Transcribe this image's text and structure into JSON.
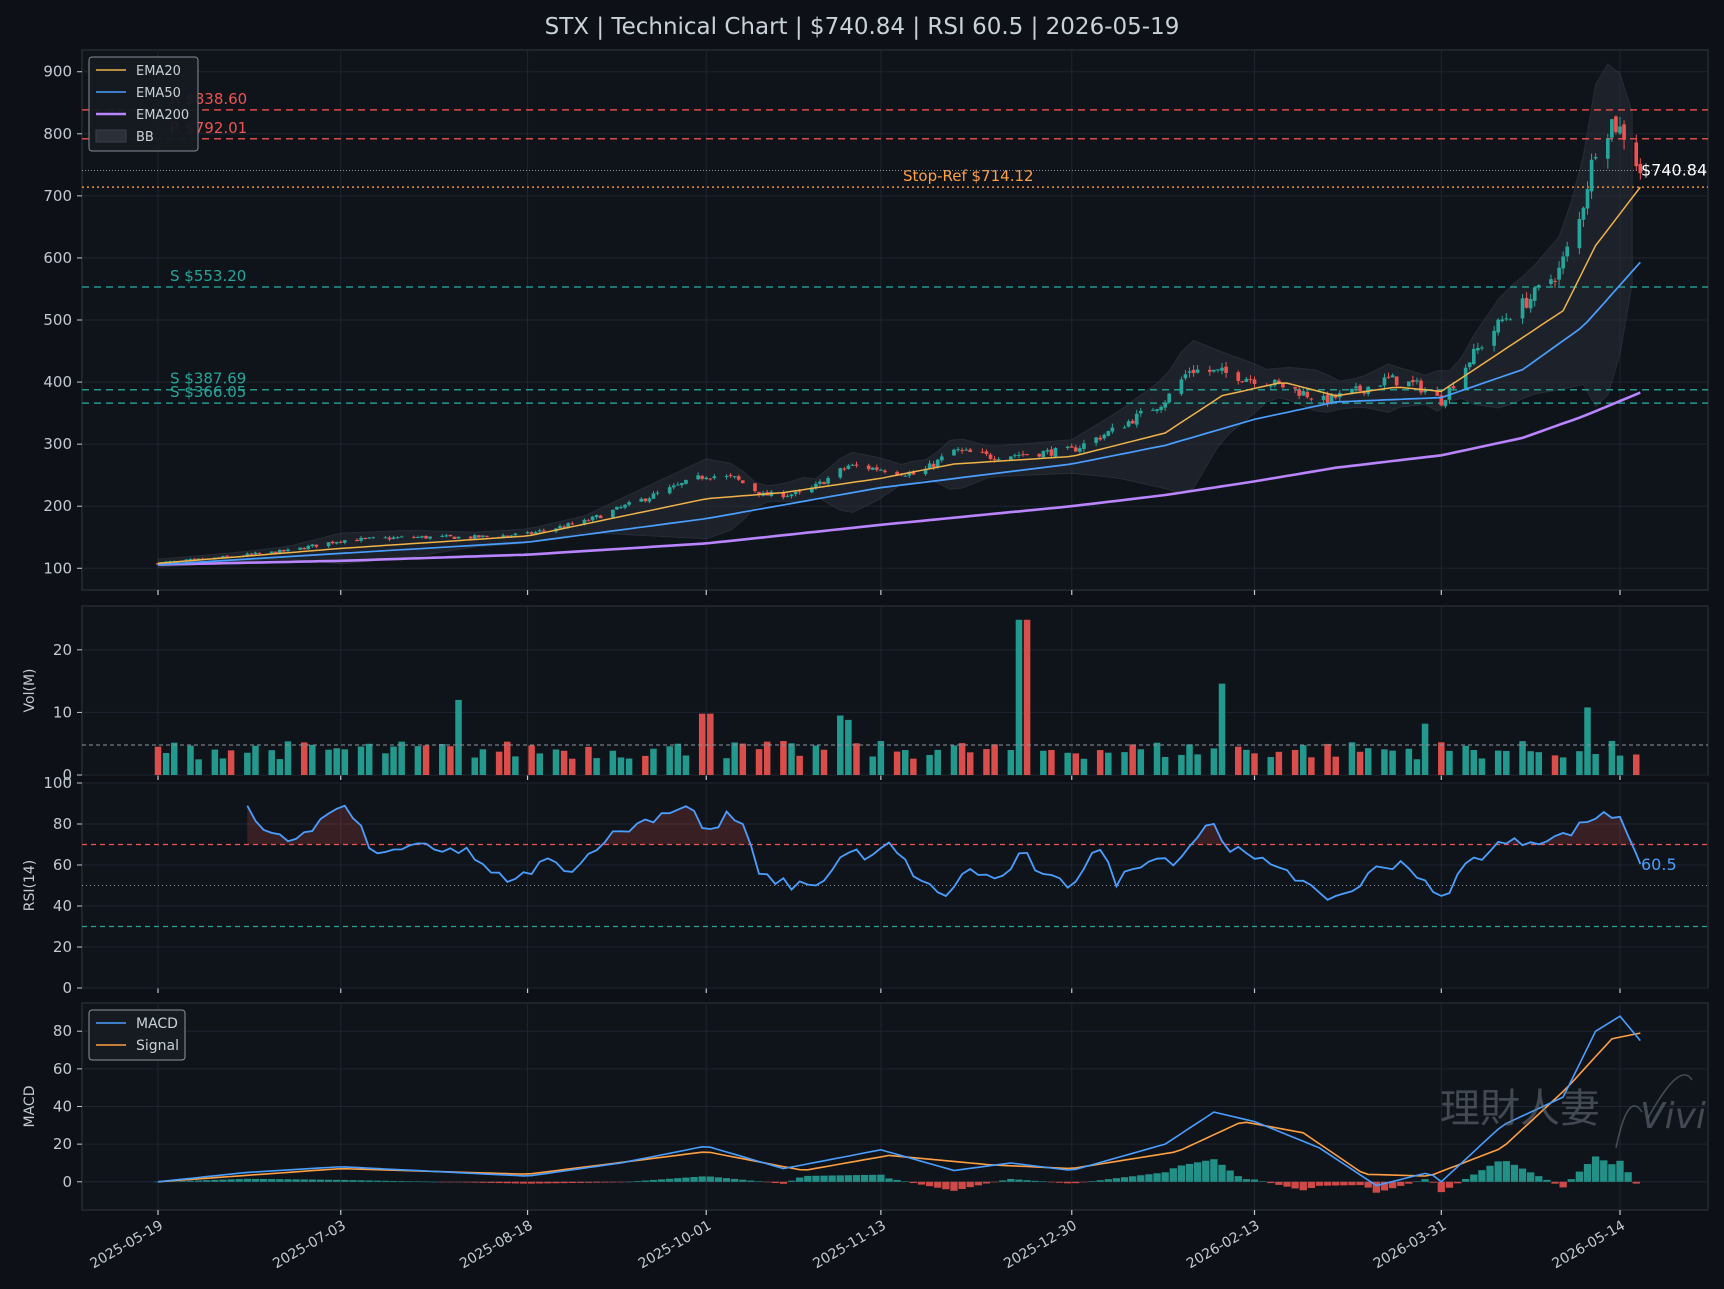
{
  "header": {
    "title": "STX  |  Technical Chart  |  $740.84  |  RSI 60.5  |  2026-05-19"
  },
  "colors": {
    "background": "#0d1117",
    "panel": "#0f141b",
    "grid": "#1e2530",
    "axis_text": "#c3c9d2",
    "up": "#26a69a",
    "down": "#ef5350",
    "ema20": "#f0b34a",
    "ema50": "#4a9eff",
    "ema200": "#b884ff",
    "bb_fill": "#2a2f38",
    "resistance": "#ef5350",
    "support": "#26a69a",
    "stop": "#ff9f43",
    "last_price_line": "#8b949e",
    "macd": "#4a9eff",
    "signal": "#ff9f43",
    "rsi": "#4a9eff"
  },
  "watermark": {
    "text_cn": "理財人妻",
    "text_sig": "Vivi"
  },
  "chart_data": [
    {
      "panel": "price",
      "type": "candlestick",
      "ylim": [
        65,
        935
      ],
      "yticks": [
        100,
        200,
        300,
        400,
        500,
        600,
        700,
        800,
        900
      ],
      "x_tick_labels": [
        "2025-05-19",
        "2025-07-03",
        "2025-08-18",
        "2025-10-01",
        "2025-11-13",
        "2025-12-30",
        "2026-02-13",
        "2026-03-31",
        "2026-05-14"
      ],
      "x_range": [
        "2025-05-19",
        "2026-05-19"
      ],
      "legend": {
        "placement": "top-left",
        "entries": [
          "EMA20",
          "EMA50",
          "EMA200",
          "BB"
        ]
      },
      "series_close_points": [
        [
          "2025-05-19",
          108
        ],
        [
          "2025-06-05",
          118
        ],
        [
          "2025-06-20",
          128
        ],
        [
          "2025-07-03",
          145
        ],
        [
          "2025-07-20",
          150
        ],
        [
          "2025-08-05",
          150
        ],
        [
          "2025-08-18",
          155
        ],
        [
          "2025-09-01",
          175
        ],
        [
          "2025-09-15",
          210
        ],
        [
          "2025-09-25",
          235
        ],
        [
          "2025-10-01",
          250
        ],
        [
          "2025-10-08",
          245
        ],
        [
          "2025-10-15",
          218
        ],
        [
          "2025-10-25",
          220
        ],
        [
          "2025-11-05",
          265
        ],
        [
          "2025-11-13",
          260
        ],
        [
          "2025-11-22",
          250
        ],
        [
          "2025-12-01",
          290
        ],
        [
          "2025-12-10",
          280
        ],
        [
          "2025-12-20",
          285
        ],
        [
          "2025-12-30",
          290
        ],
        [
          "2026-01-10",
          325
        ],
        [
          "2026-01-22",
          370
        ],
        [
          "2026-01-28",
          420
        ],
        [
          "2026-02-05",
          415
        ],
        [
          "2026-02-13",
          405
        ],
        [
          "2026-02-22",
          390
        ],
        [
          "2026-03-02",
          370
        ],
        [
          "2026-03-10",
          385
        ],
        [
          "2026-03-18",
          405
        ],
        [
          "2026-03-25",
          395
        ],
        [
          "2026-03-31",
          370
        ],
        [
          "2026-04-08",
          445
        ],
        [
          "2026-04-15",
          500
        ],
        [
          "2026-04-22",
          535
        ],
        [
          "2026-04-29",
          580
        ],
        [
          "2026-05-04",
          660
        ],
        [
          "2026-05-08",
          780
        ],
        [
          "2026-05-12",
          820
        ],
        [
          "2026-05-15",
          800
        ],
        [
          "2026-05-19",
          740.84
        ]
      ],
      "ema20": [
        [
          "2025-05-19",
          108
        ],
        [
          "2025-07-03",
          132
        ],
        [
          "2025-08-18",
          152
        ],
        [
          "2025-10-01",
          212
        ],
        [
          "2025-10-20",
          222
        ],
        [
          "2025-11-13",
          245
        ],
        [
          "2025-12-01",
          268
        ],
        [
          "2025-12-30",
          280
        ],
        [
          "2026-01-22",
          318
        ],
        [
          "2026-02-05",
          378
        ],
        [
          "2026-02-20",
          400
        ],
        [
          "2026-03-05",
          378
        ],
        [
          "2026-03-20",
          392
        ],
        [
          "2026-03-31",
          385
        ],
        [
          "2026-04-15",
          450
        ],
        [
          "2026-04-30",
          515
        ],
        [
          "2026-05-08",
          620
        ],
        [
          "2026-05-19",
          714
        ]
      ],
      "ema50": [
        [
          "2025-05-19",
          106
        ],
        [
          "2025-07-03",
          124
        ],
        [
          "2025-08-18",
          142
        ],
        [
          "2025-10-01",
          180
        ],
        [
          "2025-11-13",
          230
        ],
        [
          "2025-12-30",
          268
        ],
        [
          "2026-01-22",
          298
        ],
        [
          "2026-02-13",
          340
        ],
        [
          "2026-03-05",
          368
        ],
        [
          "2026-03-31",
          375
        ],
        [
          "2026-04-20",
          420
        ],
        [
          "2026-05-05",
          490
        ],
        [
          "2026-05-19",
          593
        ]
      ],
      "ema200": [
        [
          "2025-05-19",
          106
        ],
        [
          "2025-07-03",
          112
        ],
        [
          "2025-08-18",
          122
        ],
        [
          "2025-10-01",
          140
        ],
        [
          "2025-11-13",
          170
        ],
        [
          "2025-12-30",
          200
        ],
        [
          "2026-01-22",
          218
        ],
        [
          "2026-02-13",
          240
        ],
        [
          "2026-03-05",
          262
        ],
        [
          "2026-03-31",
          282
        ],
        [
          "2026-04-20",
          310
        ],
        [
          "2026-05-05",
          345
        ],
        [
          "2026-05-19",
          383
        ]
      ],
      "levels": [
        {
          "label": "R $838.60",
          "value": 838.6,
          "kind": "resistance"
        },
        {
          "label": "R $792.01",
          "value": 792.01,
          "kind": "resistance"
        },
        {
          "label": "Stop-Ref $714.12",
          "value": 714.12,
          "kind": "stop"
        },
        {
          "label": "S $553.20",
          "value": 553.2,
          "kind": "support"
        },
        {
          "label": "S $387.69",
          "value": 387.69,
          "kind": "support"
        },
        {
          "label": "S $366.05",
          "value": 366.05,
          "kind": "support"
        }
      ],
      "last_price": {
        "label": "$740.84",
        "value": 740.84
      }
    },
    {
      "panel": "volume",
      "type": "bar",
      "ylabel": "Vol(M)",
      "ylim": [
        0,
        27
      ],
      "yticks": [
        0,
        10,
        20
      ],
      "average": 4.8,
      "spikes": [
        [
          "2025-05-25",
          8
        ],
        [
          "2025-08-01",
          12
        ],
        [
          "2025-10-01",
          9.8
        ],
        [
          "2025-10-04",
          9.5
        ],
        [
          "2025-11-03",
          9.5
        ],
        [
          "2025-11-05",
          8.8
        ],
        [
          "2025-12-18",
          24.8
        ],
        [
          "2026-02-05",
          14.6
        ],
        [
          "2026-03-27",
          8.2
        ],
        [
          "2026-05-06",
          10.8
        ]
      ]
    },
    {
      "panel": "rsi",
      "type": "line",
      "ylabel": "RSI(14)",
      "ylim": [
        0,
        100
      ],
      "yticks": [
        0,
        20,
        40,
        60,
        80,
        100
      ],
      "overbought": 70,
      "oversold": 30,
      "midline": 50,
      "last_value_label": "60.5",
      "points": [
        [
          "2025-06-10",
          87
        ],
        [
          "2025-06-14",
          75
        ],
        [
          "2025-06-20",
          72
        ],
        [
          "2025-06-26",
          78
        ],
        [
          "2025-07-01",
          86
        ],
        [
          "2025-07-03",
          90
        ],
        [
          "2025-07-07",
          80
        ],
        [
          "2025-07-12",
          64
        ],
        [
          "2025-07-20",
          70
        ],
        [
          "2025-07-28",
          66
        ],
        [
          "2025-08-03",
          68
        ],
        [
          "2025-08-08",
          56
        ],
        [
          "2025-08-15",
          52
        ],
        [
          "2025-08-22",
          62
        ],
        [
          "2025-08-30",
          58
        ],
        [
          "2025-09-05",
          72
        ],
        [
          "2025-09-12",
          78
        ],
        [
          "2025-09-20",
          85
        ],
        [
          "2025-09-27",
          90
        ],
        [
          "2025-10-01",
          74
        ],
        [
          "2025-10-06",
          84
        ],
        [
          "2025-10-10",
          80
        ],
        [
          "2025-10-14",
          55
        ],
        [
          "2025-10-22",
          50
        ],
        [
          "2025-10-30",
          52
        ],
        [
          "2025-11-05",
          68
        ],
        [
          "2025-11-10",
          62
        ],
        [
          "2025-11-15",
          70
        ],
        [
          "2025-11-22",
          54
        ],
        [
          "2025-11-28",
          44
        ],
        [
          "2025-12-05",
          58
        ],
        [
          "2025-12-12",
          52
        ],
        [
          "2025-12-18",
          66
        ],
        [
          "2025-12-23",
          54
        ],
        [
          "2025-12-30",
          50
        ],
        [
          "2026-01-05",
          70
        ],
        [
          "2026-01-10",
          52
        ],
        [
          "2026-01-18",
          64
        ],
        [
          "2026-01-25",
          62
        ],
        [
          "2026-02-02",
          82
        ],
        [
          "2026-02-06",
          70
        ],
        [
          "2026-02-13",
          62
        ],
        [
          "2026-02-20",
          60
        ],
        [
          "2026-03-01",
          44
        ],
        [
          "2026-03-08",
          46
        ],
        [
          "2026-03-15",
          58
        ],
        [
          "2026-03-22",
          62
        ],
        [
          "2026-03-28",
          48
        ],
        [
          "2026-03-31",
          43
        ],
        [
          "2026-04-06",
          60
        ],
        [
          "2026-04-14",
          70
        ],
        [
          "2026-04-22",
          72
        ],
        [
          "2026-04-30",
          74
        ],
        [
          "2026-05-05",
          80
        ],
        [
          "2026-05-10",
          86
        ],
        [
          "2026-05-14",
          82
        ],
        [
          "2026-05-17",
          72
        ],
        [
          "2026-05-19",
          60.5
        ]
      ]
    },
    {
      "panel": "macd",
      "type": "line",
      "ylabel": "MACD",
      "ylim": [
        -15,
        95
      ],
      "yticks": [
        0,
        20,
        40,
        60,
        80
      ],
      "legend": {
        "placement": "top-left",
        "entries": [
          "MACD",
          "Signal"
        ]
      },
      "macd": [
        [
          "2025-05-19",
          0
        ],
        [
          "2025-06-10",
          5
        ],
        [
          "2025-07-03",
          8
        ],
        [
          "2025-08-18",
          3
        ],
        [
          "2025-09-10",
          10
        ],
        [
          "2025-10-01",
          19
        ],
        [
          "2025-10-20",
          7
        ],
        [
          "2025-11-13",
          17
        ],
        [
          "2025-12-01",
          6
        ],
        [
          "2025-12-15",
          10
        ],
        [
          "2025-12-30",
          6
        ],
        [
          "2026-01-22",
          20
        ],
        [
          "2026-02-03",
          37
        ],
        [
          "2026-02-13",
          32
        ],
        [
          "2026-03-01",
          18
        ],
        [
          "2026-03-15",
          -2
        ],
        [
          "2026-03-28",
          5
        ],
        [
          "2026-03-31",
          0
        ],
        [
          "2026-04-15",
          30
        ],
        [
          "2026-04-30",
          45
        ],
        [
          "2026-05-08",
          80
        ],
        [
          "2026-05-14",
          88
        ],
        [
          "2026-05-19",
          75
        ]
      ],
      "signal": [
        [
          "2025-05-19",
          0
        ],
        [
          "2025-07-03",
          7
        ],
        [
          "2025-08-18",
          4
        ],
        [
          "2025-10-01",
          16
        ],
        [
          "2025-10-25",
          6
        ],
        [
          "2025-11-15",
          14
        ],
        [
          "2025-12-10",
          9
        ],
        [
          "2025-12-30",
          7
        ],
        [
          "2026-01-25",
          16
        ],
        [
          "2026-02-10",
          32
        ],
        [
          "2026-02-25",
          26
        ],
        [
          "2026-03-12",
          4
        ],
        [
          "2026-03-28",
          3
        ],
        [
          "2026-04-15",
          18
        ],
        [
          "2026-05-01",
          50
        ],
        [
          "2026-05-12",
          76
        ],
        [
          "2026-05-19",
          79
        ]
      ]
    }
  ]
}
